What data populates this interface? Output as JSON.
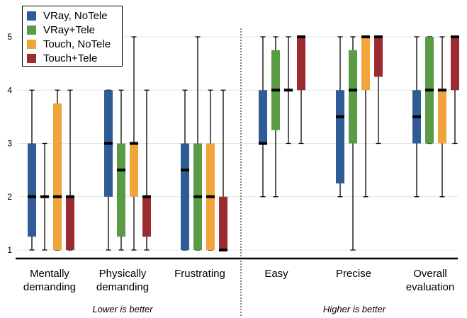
{
  "chart_data": {
    "type": "boxplot",
    "y_ticks": [
      1,
      2,
      3,
      4,
      5
    ],
    "ylim": [
      1,
      5
    ],
    "grid": true,
    "legend_position": "top-left",
    "series": [
      {
        "name": "VRay, NoTele",
        "color": "#2f5b96"
      },
      {
        "name": "VRay+Tele",
        "color": "#5a9b45"
      },
      {
        "name": "Touch, NoTele",
        "color": "#f0a43a"
      },
      {
        "name": "Touch+Tele",
        "color": "#9b2b30"
      }
    ],
    "categories": [
      "Mentally\ndemanding",
      "Physically\ndemanding",
      "Frustrating",
      "Easy",
      "Precise",
      "Overall\nevaluation"
    ],
    "groups": [
      {
        "label": "Lower is better",
        "categories": [
          0,
          1,
          2
        ]
      },
      {
        "label": "Higher is better",
        "categories": [
          3,
          4,
          5
        ]
      }
    ],
    "boxes": [
      [
        {
          "min": 1,
          "q1": 1.25,
          "median": 2,
          "q3": 3,
          "max": 4
        },
        {
          "min": 1,
          "q1": 2,
          "median": 2,
          "q3": 2,
          "max": 3
        },
        {
          "min": 1,
          "q1": 1,
          "median": 2,
          "q3": 3.75,
          "max": 4
        },
        {
          "min": 1,
          "q1": 1,
          "median": 2,
          "q3": 2,
          "max": 4
        }
      ],
      [
        {
          "min": 1,
          "q1": 2,
          "median": 3,
          "q3": 4,
          "max": 4
        },
        {
          "min": 1,
          "q1": 1.25,
          "median": 2.5,
          "q3": 3,
          "max": 4
        },
        {
          "min": 1,
          "q1": 2,
          "median": 3,
          "q3": 3,
          "max": 5
        },
        {
          "min": 1,
          "q1": 1.25,
          "median": 2,
          "q3": 2,
          "max": 4
        }
      ],
      [
        {
          "min": 1,
          "q1": 1,
          "median": 2.5,
          "q3": 3,
          "max": 4
        },
        {
          "min": 1,
          "q1": 1,
          "median": 2,
          "q3": 3,
          "max": 5
        },
        {
          "min": 1,
          "q1": 1,
          "median": 2,
          "q3": 3,
          "max": 4
        },
        {
          "min": 1,
          "q1": 1,
          "median": 1,
          "q3": 2,
          "max": 4
        }
      ],
      [
        {
          "min": 2,
          "q1": 3,
          "median": 3,
          "q3": 4,
          "max": 5
        },
        {
          "min": 2,
          "q1": 3.25,
          "median": 4,
          "q3": 4.75,
          "max": 5
        },
        {
          "min": 3,
          "q1": 4,
          "median": 4,
          "q3": 4,
          "max": 5
        },
        {
          "min": 3,
          "q1": 4,
          "median": 5,
          "q3": 5,
          "max": 5
        }
      ],
      [
        {
          "min": 2,
          "q1": 2.25,
          "median": 3.5,
          "q3": 4,
          "max": 5
        },
        {
          "min": 1,
          "q1": 3,
          "median": 4,
          "q3": 4.75,
          "max": 5
        },
        {
          "min": 2,
          "q1": 4,
          "median": 5,
          "q3": 5,
          "max": 5
        },
        {
          "min": 3,
          "q1": 4.25,
          "median": 5,
          "q3": 5,
          "max": 5
        }
      ],
      [
        {
          "min": 2,
          "q1": 3,
          "median": 3.5,
          "q3": 4,
          "max": 5
        },
        {
          "min": 3,
          "q1": 3,
          "median": 4,
          "q3": 5,
          "max": 5
        },
        {
          "min": 2,
          "q1": 3,
          "median": 4,
          "q3": 4,
          "max": 5
        },
        {
          "min": 3,
          "q1": 4,
          "median": 5,
          "q3": 5,
          "max": 5
        }
      ]
    ]
  }
}
